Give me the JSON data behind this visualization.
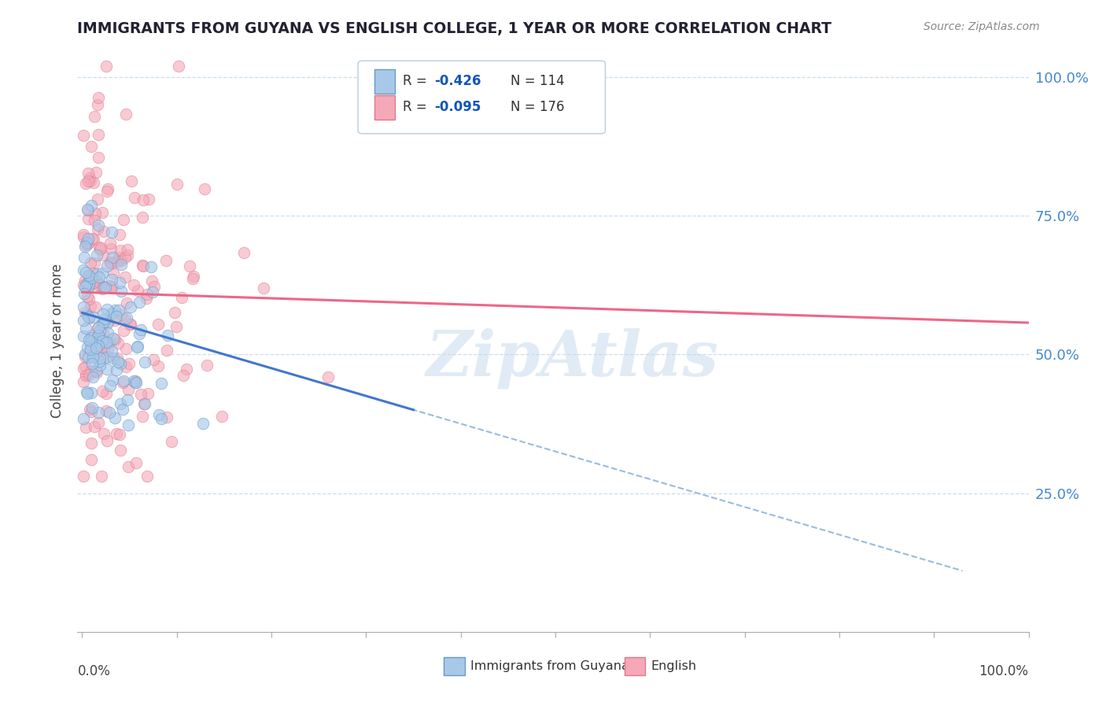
{
  "title": "IMMIGRANTS FROM GUYANA VS ENGLISH COLLEGE, 1 YEAR OR MORE CORRELATION CHART",
  "source_text": "Source: ZipAtlas.com",
  "ylabel": "College, 1 year or more",
  "legend_r1": "-0.426",
  "legend_n1": "114",
  "legend_r2": "-0.095",
  "legend_n2": "176",
  "series_guyana": {
    "color": "#a8c8e8",
    "edge_color": "#6699cc",
    "n": 114,
    "r": -0.426
  },
  "series_english": {
    "color": "#f4a8b8",
    "edge_color": "#e07888",
    "n": 176,
    "r": -0.095
  },
  "watermark": "ZipAtlas",
  "background_color": "#ffffff",
  "grid_color": "#ccddee",
  "trend_guyana_color": "#4477cc",
  "trend_english_color": "#ee6688",
  "trend_dashed_color": "#99bbdd",
  "right_tick_color": "#4488cc",
  "title_color": "#222233",
  "source_color": "#888888"
}
